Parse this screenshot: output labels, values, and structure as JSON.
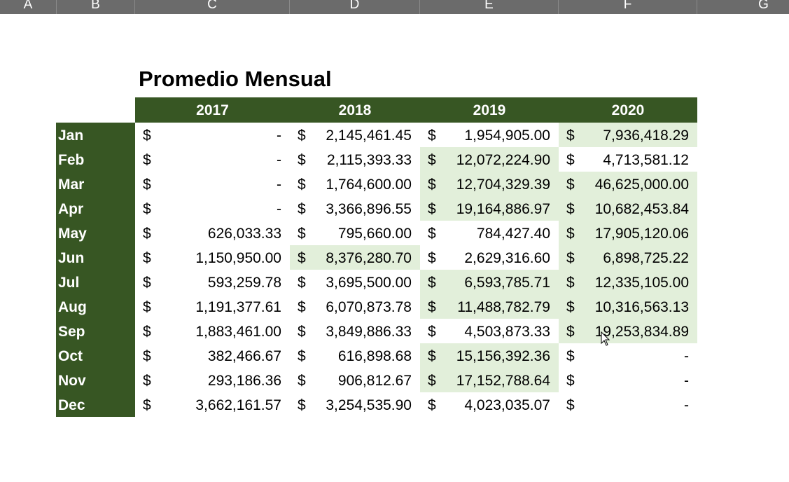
{
  "column_headers": [
    "A",
    "B",
    "C",
    "D",
    "E",
    "F",
    "G"
  ],
  "title": "Promedio Mensual",
  "years": [
    "2017",
    "2018",
    "2019",
    "2020"
  ],
  "currency_symbol": "$",
  "highlight_color": "#e2efda",
  "header_color": "#375623",
  "rows": [
    {
      "month": "Jan",
      "values": [
        "-",
        "2,145,461.45",
        "1,954,905.00",
        "7,936,418.29"
      ],
      "highlighted": [
        false,
        false,
        false,
        true
      ]
    },
    {
      "month": "Feb",
      "values": [
        "-",
        "2,115,393.33",
        "12,072,224.90",
        "4,713,581.12"
      ],
      "highlighted": [
        false,
        false,
        true,
        false
      ]
    },
    {
      "month": "Mar",
      "values": [
        "-",
        "1,764,600.00",
        "12,704,329.39",
        "46,625,000.00"
      ],
      "highlighted": [
        false,
        false,
        true,
        true
      ]
    },
    {
      "month": "Apr",
      "values": [
        "-",
        "3,366,896.55",
        "19,164,886.97",
        "10,682,453.84"
      ],
      "highlighted": [
        false,
        false,
        true,
        true
      ]
    },
    {
      "month": "May",
      "values": [
        "626,033.33",
        "795,660.00",
        "784,427.40",
        "17,905,120.06"
      ],
      "highlighted": [
        false,
        false,
        false,
        true
      ]
    },
    {
      "month": "Jun",
      "values": [
        "1,150,950.00",
        "8,376,280.70",
        "2,629,316.60",
        "6,898,725.22"
      ],
      "highlighted": [
        false,
        true,
        false,
        true
      ]
    },
    {
      "month": "Jul",
      "values": [
        "593,259.78",
        "3,695,500.00",
        "6,593,785.71",
        "12,335,105.00"
      ],
      "highlighted": [
        false,
        false,
        true,
        true
      ]
    },
    {
      "month": "Aug",
      "values": [
        "1,191,377.61",
        "6,070,873.78",
        "11,488,782.79",
        "10,316,563.13"
      ],
      "highlighted": [
        false,
        false,
        true,
        true
      ]
    },
    {
      "month": "Sep",
      "values": [
        "1,883,461.00",
        "3,849,886.33",
        "4,503,873.33",
        "19,253,834.89"
      ],
      "highlighted": [
        false,
        false,
        false,
        true
      ]
    },
    {
      "month": "Oct",
      "values": [
        "382,466.67",
        "616,898.68",
        "15,156,392.36",
        "-"
      ],
      "highlighted": [
        false,
        false,
        true,
        false
      ]
    },
    {
      "month": "Nov",
      "values": [
        "293,186.36",
        "906,812.67",
        "17,152,788.64",
        "-"
      ],
      "highlighted": [
        false,
        false,
        true,
        false
      ]
    },
    {
      "month": "Dec",
      "values": [
        "3,662,161.57",
        "3,254,535.90",
        "4,023,035.07",
        "-"
      ],
      "highlighted": [
        false,
        false,
        false,
        false
      ]
    }
  ]
}
